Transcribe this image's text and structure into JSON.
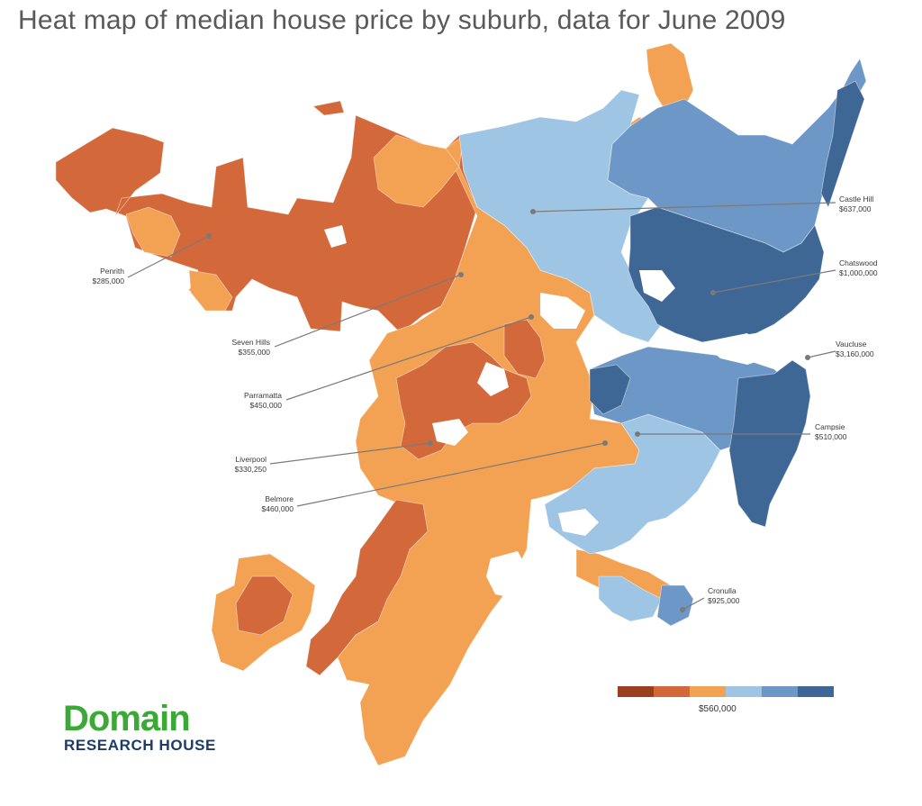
{
  "title": "Heat map of median house price by suburb, data for June 2009",
  "colors": {
    "c1": "#9c3f1f",
    "c2": "#d3683a",
    "c3": "#f3a152",
    "c4": "#9fc5e4",
    "c5": "#6c97c6",
    "c6": "#3f6796"
  },
  "legend": {
    "midpoint_label": "$560,000"
  },
  "suburbs": [
    {
      "name": "Penrith",
      "price": "$285,000"
    },
    {
      "name": "Seven Hills",
      "price": "$355,000"
    },
    {
      "name": "Parramatta",
      "price": "$450,000"
    },
    {
      "name": "Liverpool",
      "price": "$330,250"
    },
    {
      "name": "Belmore",
      "price": "$460,000"
    },
    {
      "name": "Castle Hill",
      "price": "$637,000"
    },
    {
      "name": "Chatswood",
      "price": "$1,000,000"
    },
    {
      "name": "Vaucluse",
      "price": "$3,160,000"
    },
    {
      "name": "Campsie",
      "price": "$510,000"
    },
    {
      "name": "Cronulla",
      "price": "$925,000"
    }
  ],
  "logo": {
    "name": "Domain",
    "subtitle": "RESEARCH HOUSE"
  }
}
